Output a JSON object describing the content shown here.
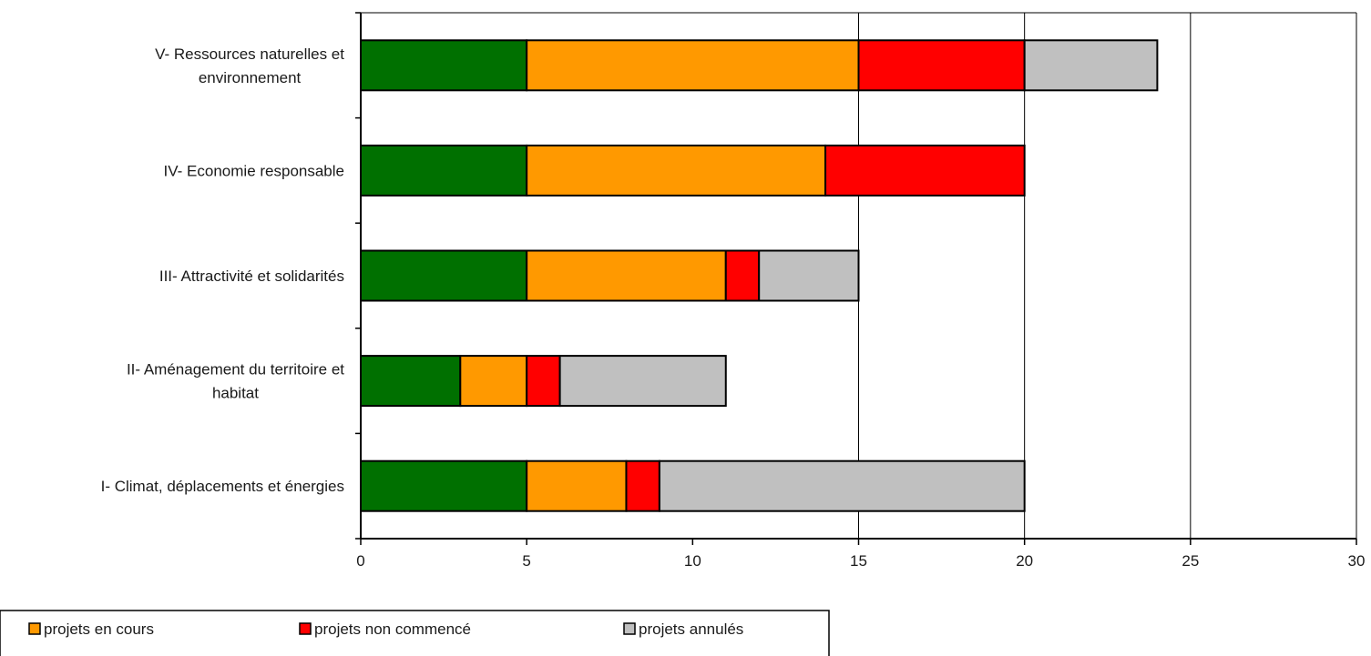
{
  "chart_data": {
    "type": "bar",
    "orientation": "horizontal",
    "stacked": true,
    "title": "",
    "xlabel": "",
    "ylabel": "",
    "xlim": [
      0,
      30
    ],
    "x_ticks": [
      0,
      5,
      10,
      15,
      20,
      25,
      30
    ],
    "grid": "vertical gridlines at 15, 20, 25",
    "legend_position": "bottom-left",
    "categories": [
      [
        "V- Ressources naturelles et",
        "environnement"
      ],
      [
        "IV- Economie responsable"
      ],
      [
        "III- Attractivité et solidarités"
      ],
      [
        "II- Aménagement du territoire et",
        "habitat"
      ],
      [
        "I- Climat, déplacements et énergies"
      ]
    ],
    "series": [
      {
        "color": "#007000",
        "values": [
          5,
          5,
          5,
          3,
          5
        ]
      },
      {
        "name": "projets en cours",
        "color": "#ff9900",
        "values": [
          10,
          9,
          6,
          2,
          3
        ]
      },
      {
        "name": "projets non commencé",
        "color": "#ff0000",
        "values": [
          5,
          6,
          1,
          1,
          1
        ]
      },
      {
        "name": "projets annulés",
        "color": "#c0c0c0",
        "values": [
          4,
          0,
          3,
          5,
          11
        ]
      }
    ],
    "legend_entries": [
      "projets en cours",
      "projets non commencé",
      "projets annulés"
    ]
  }
}
